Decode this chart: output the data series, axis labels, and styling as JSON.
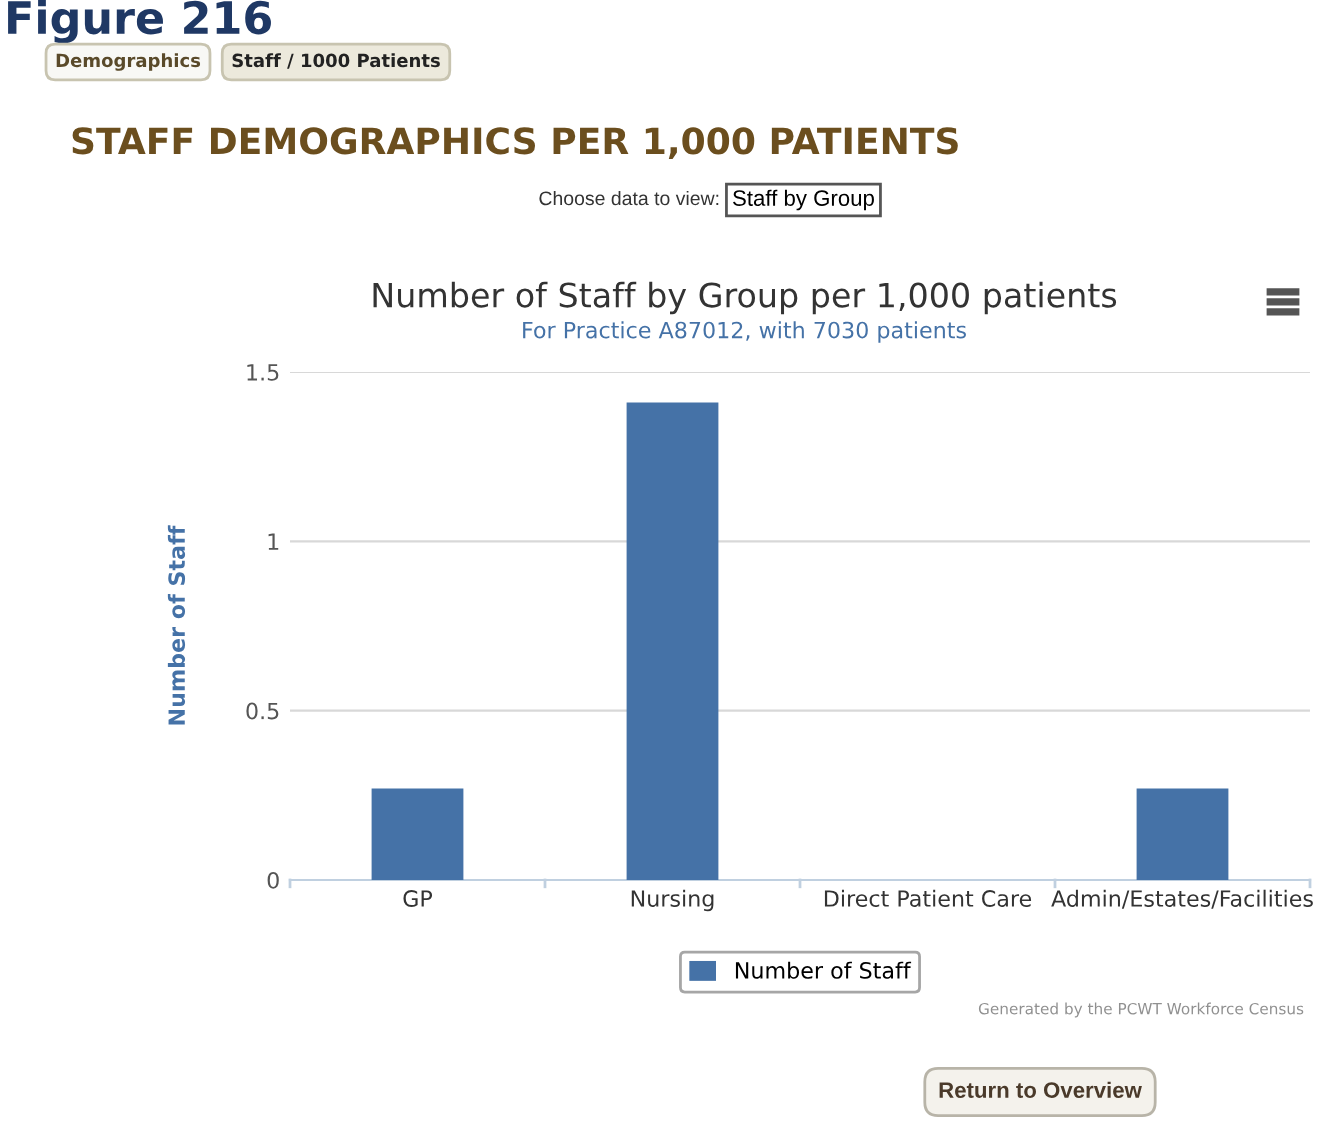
{
  "chart_data": {
    "type": "bar",
    "title": "Number of Staff by Group per 1,000 patients",
    "subtitle": "For Practice A87012, with 7030 patients",
    "ylabel": "Number of Staff",
    "categories": [
      "GP",
      "Nursing",
      "Direct Patient Care",
      "Admin/Estates/Facilities"
    ],
    "series": [
      {
        "name": "Number of Staff",
        "color": "#4572a7",
        "values": [
          0.27,
          1.41,
          0,
          0.27
        ]
      }
    ],
    "ylim": [
      0,
      1.5
    ],
    "yticks": [
      0,
      0.5,
      1,
      1.5
    ],
    "grid": "y",
    "legend": "bottom",
    "annotations": [
      "Figure 216",
      "Demographics",
      "Staff / 1000 Patients",
      "STAFF DEMOGRAPHICS PER 1,000 PATIENTS",
      "Choose data to view:",
      "Staff by Group",
      "Generated by the PCWT Workforce Census",
      "Return to Overview"
    ]
  }
}
